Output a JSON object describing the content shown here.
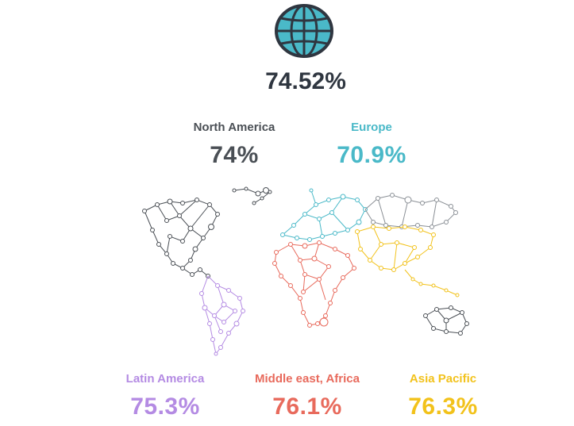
{
  "globe_icon": "globe-icon",
  "total": "74.52%",
  "regions": [
    {
      "name": "North America",
      "value": "74%",
      "color": "#4a4f55"
    },
    {
      "name": "Europe",
      "value": "70.9%",
      "color": "#4ab9c8"
    },
    {
      "name": "Latin America",
      "value": "75.3%",
      "color": "#b48be3"
    },
    {
      "name": "Middle east, Africa",
      "value": "76.1%",
      "color": "#e86a5c"
    },
    {
      "name": "Asia Pacific",
      "value": "76.3%",
      "color": "#f2c21b"
    }
  ],
  "map_icon": "world-network-map"
}
